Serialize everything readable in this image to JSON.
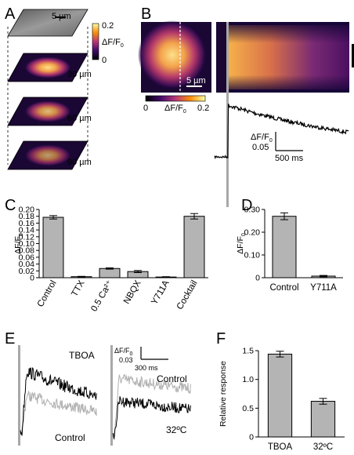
{
  "panels": {
    "a": "A",
    "b": "B",
    "c": "C",
    "d": "D",
    "e": "E",
    "f": "F"
  },
  "panel_a": {
    "scale_label": "5 µm",
    "cbar_max": "0.2",
    "cbar_min": "0",
    "cbar_label_main": "ΔF/F",
    "cbar_label_sub": "0",
    "planes": [
      {
        "label": "30 µm",
        "intensity": 1.0
      },
      {
        "label": "60 µm",
        "intensity": 0.85
      },
      {
        "label": "90 µm",
        "intensity": 0.7
      }
    ],
    "colors": {
      "colormap": "inferno"
    }
  },
  "panel_b": {
    "scale_label": "5 µm",
    "cbar_min": "0",
    "cbar_max": "0.2",
    "cbar_label_main": "ΔF/F",
    "cbar_label_sub": "0",
    "trace_label_main": "ΔF/F",
    "trace_label_sub": "0",
    "yscale": "0.05",
    "xscale": "500 ms"
  },
  "panel_e": {
    "left_top_label": "TBOA",
    "left_bottom_label": "Control",
    "right_top_label": "Control",
    "right_bottom_label": "32ºC",
    "scale_label_main": "ΔF/F",
    "scale_label_sub": "0",
    "yscale": "0.03",
    "xscale": "300 ms",
    "colors": {
      "treatment": "#000000",
      "control": "#b0b0b0"
    }
  },
  "chart_data": [
    {
      "id": "C",
      "type": "bar",
      "categories": [
        "Control",
        "TTX",
        "0.5 Ca²⁺",
        "NBQX",
        "Y711A",
        "Cocktail"
      ],
      "values": [
        0.177,
        0.003,
        0.027,
        0.018,
        0.002,
        0.18
      ],
      "errors": [
        0.005,
        0.001,
        0.002,
        0.003,
        0.001,
        0.008
      ],
      "ylabel_main": "ΔF/F",
      "ylabel_sub": "0",
      "ylim": [
        0,
        0.2
      ],
      "yticks": [
        "0",
        "0.02",
        "0.04",
        "0.06",
        "0.08",
        "0.10",
        "0.12",
        "0.14",
        "0.16",
        "0.18",
        "0.20"
      ],
      "ytick_values": [
        0,
        0.02,
        0.04,
        0.06,
        0.08,
        0.1,
        0.12,
        0.14,
        0.16,
        0.18,
        0.2
      ],
      "bar_color": "#b4b4b4",
      "rotate_labels": true
    },
    {
      "id": "D",
      "type": "bar",
      "categories": [
        "Control",
        "Y711A"
      ],
      "values": [
        0.27,
        0.007
      ],
      "errors": [
        0.015,
        0.003
      ],
      "ylabel_main": "ΔF/F",
      "ylabel_sub": "0",
      "ylim": [
        0,
        0.3
      ],
      "yticks": [
        "0",
        "0.10",
        "0.20",
        "0.30"
      ],
      "ytick_values": [
        0,
        0.1,
        0.2,
        0.3
      ],
      "bar_color": "#b4b4b4",
      "rotate_labels": false
    },
    {
      "id": "F",
      "type": "bar",
      "categories": [
        "TBOA",
        "32ºC"
      ],
      "values": [
        1.44,
        0.62
      ],
      "errors": [
        0.05,
        0.05
      ],
      "ylabel_main": "Relative response",
      "ylabel_sub": "",
      "ylim": [
        0,
        1.5
      ],
      "yticks": [
        "0",
        "0.5",
        "1.0",
        "1.5"
      ],
      "ytick_values": [
        0,
        0.5,
        1.0,
        1.5
      ],
      "bar_color": "#b4b4b4",
      "rotate_labels": false
    }
  ]
}
